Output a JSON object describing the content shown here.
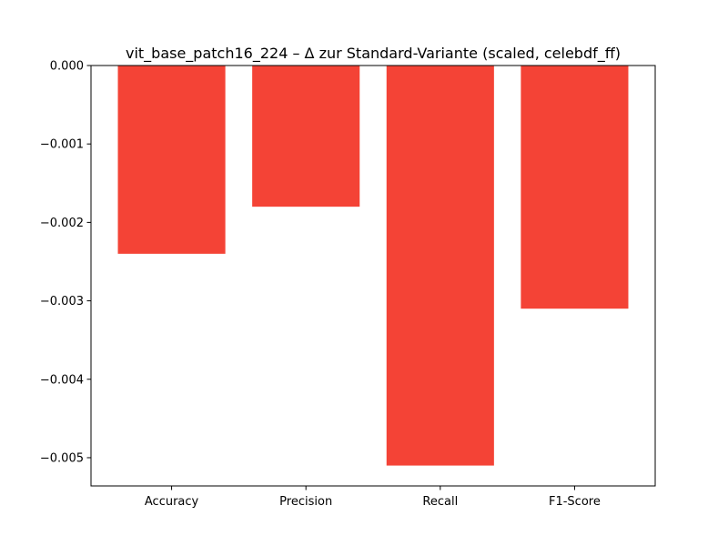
{
  "chart_data": {
    "type": "bar",
    "title": "vit_base_patch16_224 – Δ zur Standard-Variante (scaled, celebdf_ff)",
    "xlabel": "",
    "ylabel": "",
    "categories": [
      "Accuracy",
      "Precision",
      "Recall",
      "F1-Score"
    ],
    "values": [
      -0.0024,
      -0.0018,
      -0.0051,
      -0.0031
    ],
    "ylim": [
      -0.00536,
      0.0
    ],
    "yticks": [
      0.0,
      -0.001,
      -0.002,
      -0.003,
      -0.004,
      -0.005
    ],
    "ytick_labels": [
      "0.000",
      "−0.001",
      "−0.002",
      "−0.003",
      "−0.004",
      "−0.005"
    ],
    "bar_color": "#f44336",
    "grid": false,
    "legend": false
  }
}
